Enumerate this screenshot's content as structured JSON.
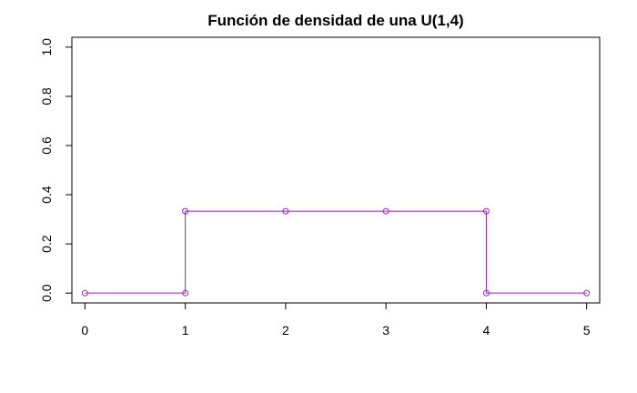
{
  "chart_data": {
    "type": "line",
    "title": "Función de densidad de una U(1,4)",
    "xlabel": "",
    "ylabel": "",
    "x_ticks": [
      "0",
      "1",
      "2",
      "3",
      "4",
      "5"
    ],
    "y_ticks": [
      "0.0",
      "0.2",
      "0.4",
      "0.6",
      "0.8",
      "1.0"
    ],
    "xlim": [
      -0.13,
      5.13
    ],
    "ylim": [
      -0.04,
      1.04
    ],
    "grid": false,
    "series": [
      {
        "color": "#9A21CF",
        "line_style": "steps",
        "marker": "open-circle",
        "points": [
          {
            "x": 0,
            "y": 0
          },
          {
            "x": 1,
            "y": 0
          },
          {
            "x": 1,
            "y": 0.333
          },
          {
            "x": 2,
            "y": 0.333
          },
          {
            "x": 3,
            "y": 0.333
          },
          {
            "x": 4,
            "y": 0.333
          },
          {
            "x": 4,
            "y": 0
          },
          {
            "x": 5,
            "y": 0
          }
        ]
      }
    ]
  }
}
